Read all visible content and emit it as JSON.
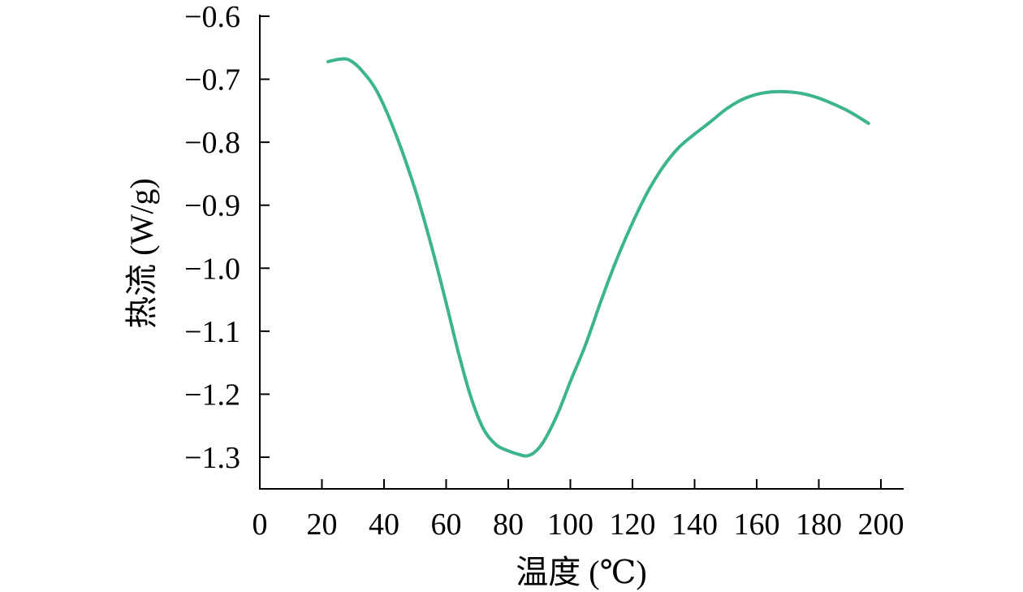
{
  "chart_data": {
    "type": "line",
    "title": "",
    "xlabel": "温度 (℃)",
    "ylabel": "热流 (W/g)",
    "xlim": [
      0,
      210
    ],
    "ylim": [
      -1.35,
      -0.6
    ],
    "xticks": [
      0,
      20,
      40,
      60,
      80,
      100,
      120,
      140,
      160,
      180,
      200
    ],
    "xtick_labels": [
      "0",
      "20",
      "40",
      "60",
      "80",
      "100",
      "120",
      "140",
      "160",
      "180",
      "200"
    ],
    "yticks": [
      -0.6,
      -0.7,
      -0.8,
      -0.9,
      -1.0,
      -1.1,
      -1.2,
      -1.3
    ],
    "ytick_labels": [
      "−0.6",
      "−0.7",
      "−0.8",
      "−0.9",
      "−1.0",
      "−1.1",
      "−1.2",
      "−1.3"
    ],
    "grid": false,
    "legend": "none",
    "line_color": "#3db58a",
    "series": [
      {
        "x": [
          22,
          26,
          29,
          33,
          38,
          44,
          50,
          55,
          60,
          64,
          68,
          72,
          76,
          80,
          83,
          86,
          89,
          92,
          96,
          100,
          105,
          110,
          115,
          120,
          125,
          130,
          135,
          140,
          145,
          150,
          155,
          160,
          165,
          170,
          175,
          180,
          185,
          190,
          196
        ],
        "y": [
          -0.672,
          -0.668,
          -0.67,
          -0.687,
          -0.722,
          -0.79,
          -0.875,
          -0.96,
          -1.055,
          -1.135,
          -1.205,
          -1.255,
          -1.28,
          -1.29,
          -1.295,
          -1.298,
          -1.29,
          -1.27,
          -1.23,
          -1.18,
          -1.12,
          -1.05,
          -0.985,
          -0.928,
          -0.878,
          -0.838,
          -0.808,
          -0.787,
          -0.768,
          -0.748,
          -0.733,
          -0.724,
          -0.72,
          -0.72,
          -0.723,
          -0.73,
          -0.74,
          -0.752,
          -0.77
        ]
      }
    ]
  }
}
